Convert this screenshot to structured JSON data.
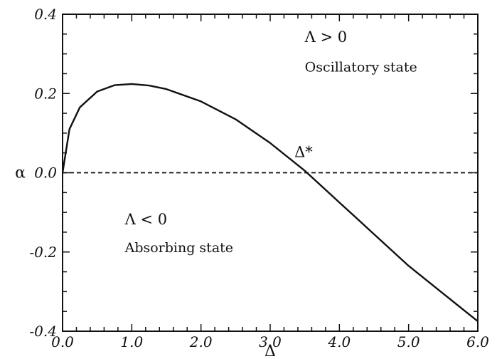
{
  "chart_data": {
    "type": "line",
    "xlim": [
      0.0,
      6.0
    ],
    "ylim": [
      -0.4,
      0.4
    ],
    "xlabel": "Δ",
    "ylabel": "α",
    "x_ticks": [
      "0.0",
      "1.0",
      "2.0",
      "3.0",
      "4.0",
      "5.0",
      "6.0"
    ],
    "x_tick_values": [
      0,
      1,
      2,
      3,
      4,
      5,
      6
    ],
    "y_ticks": [
      "-0.4",
      "-0.2",
      "0.0",
      "0.2",
      "0.4"
    ],
    "y_tick_values": [
      -0.4,
      -0.2,
      0.0,
      0.2,
      0.4
    ],
    "grid": false,
    "series": [
      {
        "style": "solid",
        "x": [
          0.0,
          0.1,
          0.25,
          0.5,
          0.75,
          1.0,
          1.25,
          1.5,
          2.0,
          2.5,
          3.0,
          3.5,
          4.0,
          4.5,
          5.0,
          5.5,
          6.0
        ],
        "y": [
          0.0,
          0.11,
          0.165,
          0.205,
          0.221,
          0.224,
          0.22,
          0.211,
          0.18,
          0.135,
          0.075,
          0.005,
          -0.075,
          -0.155,
          -0.235,
          -0.305,
          -0.375
        ]
      },
      {
        "style": "dashed",
        "x": [
          0.0,
          6.0
        ],
        "y": [
          0.0,
          0.0
        ]
      }
    ],
    "annotations": [
      {
        "text": "Λ > 0",
        "x": 3.5,
        "y": 0.33
      },
      {
        "text": "Oscillatory state",
        "x": 3.5,
        "y": 0.255
      },
      {
        "text": "Δ*",
        "x": 3.35,
        "y": 0.04
      },
      {
        "text": "Λ < 0",
        "x": 0.9,
        "y": -0.13
      },
      {
        "text": "Absorbing state",
        "x": 0.9,
        "y": -0.2
      }
    ]
  }
}
